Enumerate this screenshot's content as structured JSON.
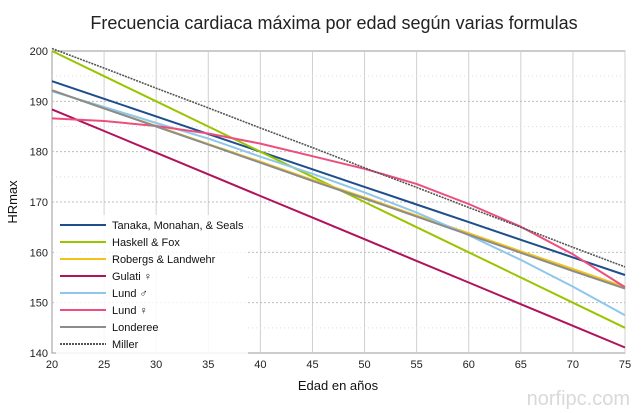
{
  "chart_data": {
    "type": "line",
    "title": "Frecuencia cardiaca máxima por edad según varias formulas",
    "xlabel": "Edad en años",
    "ylabel": "HRmax",
    "xlim": [
      20,
      75
    ],
    "ylim": [
      140,
      200
    ],
    "xticks": [
      20,
      25,
      30,
      35,
      40,
      45,
      50,
      55,
      60,
      65,
      70,
      75
    ],
    "yticks": [
      140,
      150,
      160,
      170,
      180,
      190,
      200
    ],
    "grid": true,
    "legend_position": "bottom-left",
    "x": [
      20,
      25,
      30,
      35,
      40,
      45,
      50,
      55,
      60,
      65,
      70,
      75
    ],
    "series": [
      {
        "name": "Tanaka, Monahan, & Seals",
        "color": "#1f4e8c",
        "values": [
          194.0,
          190.5,
          187.0,
          183.5,
          180.0,
          176.5,
          173.0,
          169.5,
          166.0,
          162.5,
          159.0,
          155.5
        ]
      },
      {
        "name": "Haskell & Fox",
        "color": "#9bc400",
        "values": [
          200,
          195,
          190,
          185,
          180,
          175,
          170,
          165,
          160,
          155,
          150,
          145
        ]
      },
      {
        "name": "Robergs & Landwehr",
        "color": "#f2c318",
        "values": [
          192.2,
          188.6,
          185.1,
          181.5,
          178.0,
          174.4,
          170.9,
          167.3,
          163.8,
          160.2,
          156.7,
          153.1
        ]
      },
      {
        "name": "Gulati ♀",
        "color": "#b0135a",
        "values": [
          188.4,
          184.1,
          179.8,
          175.5,
          171.2,
          166.9,
          162.6,
          158.3,
          154.0,
          149.7,
          145.4,
          141.1
        ]
      },
      {
        "name": "Lund ♂",
        "color": "#8fc7ea",
        "values": [
          192.0,
          188.9,
          185.7,
          182.6,
          179.0,
          175.6,
          171.9,
          167.9,
          163.4,
          158.5,
          153.2,
          147.5
        ]
      },
      {
        "name": "Lund ♀",
        "color": "#ec4f7e",
        "values": [
          186.6,
          186.1,
          185.1,
          183.6,
          181.6,
          179.1,
          176.6,
          173.6,
          169.6,
          165.1,
          159.6,
          153.1
        ]
      },
      {
        "name": "Londeree",
        "color": "#8c8c8c",
        "values": [
          192.2,
          188.6,
          185.0,
          181.4,
          177.8,
          174.2,
          170.7,
          167.1,
          163.5,
          159.9,
          156.3,
          152.8
        ]
      },
      {
        "name": "Miller",
        "color": "#555555",
        "dashed": true,
        "values": [
          200.5,
          196.6,
          192.6,
          188.7,
          184.7,
          180.8,
          176.8,
          172.9,
          168.9,
          165.0,
          161.0,
          157.1
        ]
      }
    ]
  },
  "watermark": "norfipc.com"
}
